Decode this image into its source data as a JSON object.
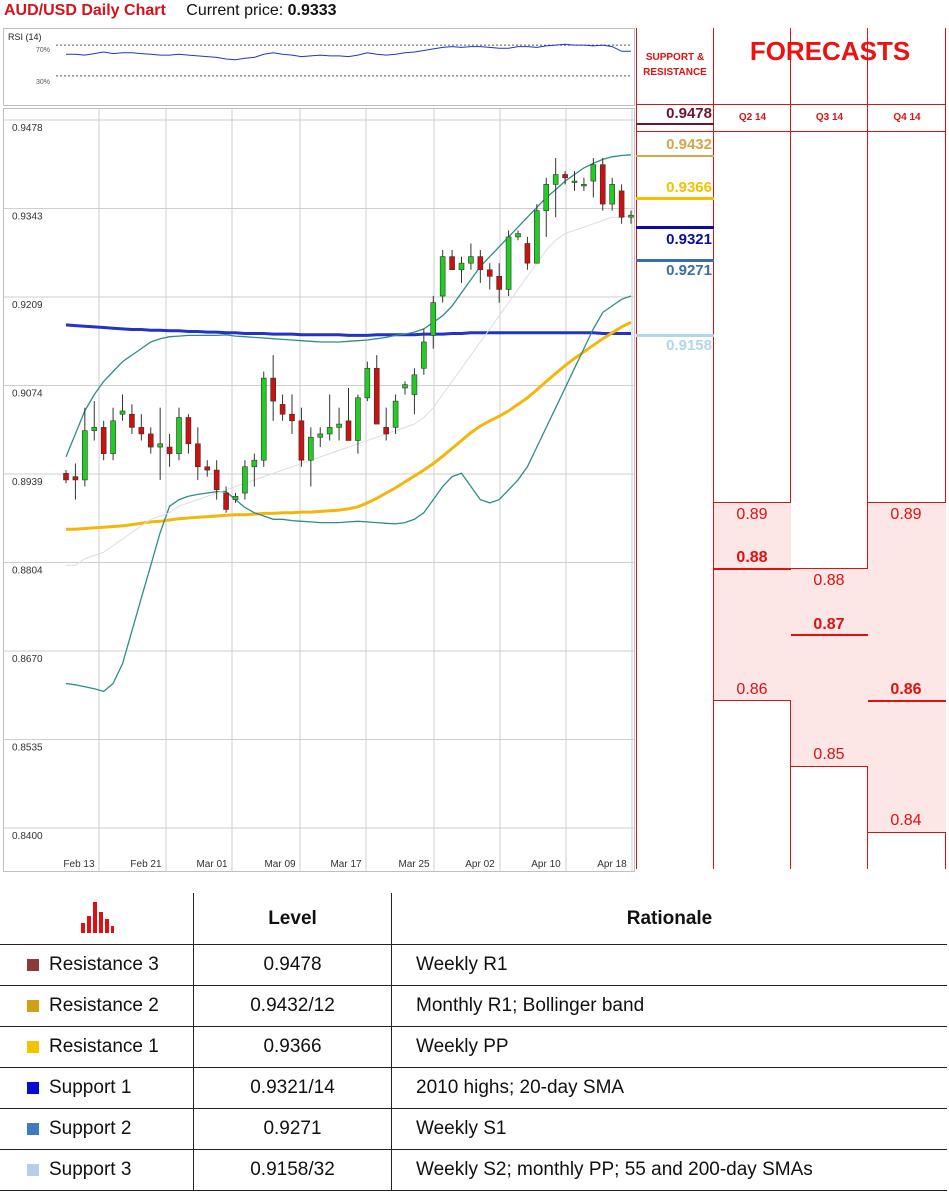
{
  "header": {
    "title": "AUD/USD Daily Chart",
    "current_price_label": "Current price:",
    "current_price": "0.9333"
  },
  "rsi": {
    "label": "RSI (14)",
    "ticks": [
      "70%",
      "30%"
    ]
  },
  "chart_data": {
    "type": "candlestick",
    "title": "AUD/USD Daily Chart",
    "ylim": [
      0.84,
      0.9478
    ],
    "y_ticks": [
      "0.9478",
      "0.9343",
      "0.9209",
      "0.9074",
      "0.8939",
      "0.8804",
      "0.8670",
      "0.8535",
      "0.8400"
    ],
    "x_ticks": [
      "Feb 13",
      "Feb 21",
      "Mar 01",
      "Mar 09",
      "Mar 17",
      "Mar 25",
      "Apr 02",
      "Apr 10",
      "Apr 18"
    ],
    "candles": [
      [
        0.894,
        0.8945,
        0.8925,
        0.893
      ],
      [
        0.8935,
        0.8955,
        0.89,
        0.893
      ],
      [
        0.893,
        0.904,
        0.892,
        0.9005
      ],
      [
        0.9005,
        0.905,
        0.899,
        0.901
      ],
      [
        0.901,
        0.902,
        0.896,
        0.897
      ],
      [
        0.897,
        0.904,
        0.896,
        0.902
      ],
      [
        0.903,
        0.906,
        0.902,
        0.9035
      ],
      [
        0.903,
        0.9045,
        0.9,
        0.901
      ],
      [
        0.901,
        0.903,
        0.899,
        0.9
      ],
      [
        0.9,
        0.901,
        0.897,
        0.898
      ],
      [
        0.898,
        0.904,
        0.893,
        0.8985
      ],
      [
        0.898,
        0.9,
        0.895,
        0.897
      ],
      [
        0.897,
        0.904,
        0.896,
        0.9025
      ],
      [
        0.9025,
        0.903,
        0.897,
        0.8985
      ],
      [
        0.8985,
        0.901,
        0.893,
        0.895
      ],
      [
        0.895,
        0.896,
        0.8935,
        0.8945
      ],
      [
        0.8945,
        0.896,
        0.89,
        0.8915
      ],
      [
        0.891,
        0.892,
        0.888,
        0.8885
      ],
      [
        0.89,
        0.891,
        0.8895,
        0.8905
      ],
      [
        0.891,
        0.896,
        0.89,
        0.895
      ],
      [
        0.895,
        0.897,
        0.892,
        0.896
      ],
      [
        0.896,
        0.9095,
        0.895,
        0.9085
      ],
      [
        0.9085,
        0.912,
        0.902,
        0.905
      ],
      [
        0.9045,
        0.906,
        0.902,
        0.903
      ],
      [
        0.903,
        0.906,
        0.9,
        0.902
      ],
      [
        0.902,
        0.904,
        0.895,
        0.896
      ],
      [
        0.896,
        0.901,
        0.892,
        0.8995
      ],
      [
        0.8995,
        0.901,
        0.898,
        0.9
      ],
      [
        0.9,
        0.906,
        0.899,
        0.901
      ],
      [
        0.901,
        0.904,
        0.899,
        0.9015
      ],
      [
        0.902,
        0.907,
        0.899,
        0.899
      ],
      [
        0.899,
        0.906,
        0.897,
        0.9055
      ],
      [
        0.9055,
        0.911,
        0.905,
        0.91
      ],
      [
        0.91,
        0.912,
        0.902,
        0.9015
      ],
      [
        0.901,
        0.904,
        0.899,
        0.9
      ],
      [
        0.901,
        0.906,
        0.9,
        0.905
      ],
      [
        0.907,
        0.908,
        0.906,
        0.9075
      ],
      [
        0.906,
        0.91,
        0.903,
        0.909
      ],
      [
        0.91,
        0.916,
        0.909,
        0.914
      ],
      [
        0.915,
        0.921,
        0.913,
        0.92
      ],
      [
        0.921,
        0.928,
        0.92,
        0.927
      ],
      [
        0.927,
        0.928,
        0.925,
        0.925
      ],
      [
        0.925,
        0.927,
        0.923,
        0.926
      ],
      [
        0.926,
        0.929,
        0.925,
        0.927
      ],
      [
        0.927,
        0.928,
        0.923,
        0.925
      ],
      [
        0.925,
        0.926,
        0.922,
        0.924
      ],
      [
        0.924,
        0.926,
        0.92,
        0.922
      ],
      [
        0.922,
        0.931,
        0.921,
        0.93
      ],
      [
        0.93,
        0.931,
        0.9295,
        0.9305
      ],
      [
        0.929,
        0.93,
        0.925,
        0.926
      ],
      [
        0.926,
        0.935,
        0.926,
        0.934
      ],
      [
        0.934,
        0.939,
        0.93,
        0.938
      ],
      [
        0.938,
        0.942,
        0.933,
        0.9395
      ],
      [
        0.9395,
        0.94,
        0.938,
        0.939
      ],
      [
        0.9385,
        0.94,
        0.937,
        0.9385
      ],
      [
        0.938,
        0.939,
        0.937,
        0.938
      ],
      [
        0.9385,
        0.942,
        0.936,
        0.941
      ],
      [
        0.941,
        0.942,
        0.934,
        0.935
      ],
      [
        0.935,
        0.939,
        0.934,
        0.938
      ],
      [
        0.937,
        0.938,
        0.932,
        0.933
      ],
      [
        0.933,
        0.934,
        0.932,
        0.9333
      ]
    ],
    "series": [
      {
        "color": "#2233cc",
        "values": [
          0.9166,
          0.9165,
          0.9164,
          0.9163,
          0.9162,
          0.9161,
          0.916,
          0.9159,
          0.9159,
          0.9158,
          0.9158,
          0.9157,
          0.9157,
          0.9156,
          0.9156,
          0.9155,
          0.9155,
          0.9154,
          0.9154,
          0.9153,
          0.9153,
          0.9153,
          0.9152,
          0.9152,
          0.9152,
          0.9151,
          0.9151,
          0.9151,
          0.9151,
          0.9151,
          0.915,
          0.915,
          0.915,
          0.9151,
          0.9151,
          0.9151,
          0.9151,
          0.9151,
          0.9152,
          0.9152,
          0.9152,
          0.9153,
          0.9153,
          0.9154,
          0.9154,
          0.9154,
          0.9154,
          0.9154,
          0.9154,
          0.9154,
          0.9154,
          0.9154,
          0.9154,
          0.9154,
          0.9154,
          0.9154,
          0.9154,
          0.9153,
          0.9153,
          0.9153,
          0.9153
        ]
      },
      {
        "color": "#f2b70c",
        "values": [
          0.8855,
          0.8855,
          0.8856,
          0.8857,
          0.8858,
          0.8859,
          0.886,
          0.8862,
          0.8864,
          0.8866,
          0.8867,
          0.8869,
          0.8871,
          0.8872,
          0.8873,
          0.8874,
          0.8875,
          0.8876,
          0.8877,
          0.8877,
          0.8878,
          0.8879,
          0.8879,
          0.888,
          0.888,
          0.8881,
          0.8881,
          0.8882,
          0.8883,
          0.8884,
          0.8886,
          0.8889,
          0.8895,
          0.8902,
          0.891,
          0.8918,
          0.8927,
          0.8936,
          0.8945,
          0.8955,
          0.8966,
          0.8978,
          0.899,
          0.9002,
          0.9012,
          0.902,
          0.9027,
          0.9035,
          0.9045,
          0.9055,
          0.9067,
          0.908,
          0.9092,
          0.9104,
          0.9115,
          0.9125,
          0.9135,
          0.9145,
          0.9154,
          0.9163,
          0.917
        ]
      },
      {
        "color": "#2f8c86",
        "values": [
          0.8965,
          0.9,
          0.9035,
          0.906,
          0.908,
          0.9095,
          0.911,
          0.912,
          0.913,
          0.914,
          0.9145,
          0.9148,
          0.9149,
          0.915,
          0.915,
          0.915,
          0.915,
          0.9151,
          0.9149,
          0.9148,
          0.9147,
          0.9146,
          0.9145,
          0.9144,
          0.9143,
          0.9142,
          0.9141,
          0.914,
          0.914,
          0.914,
          0.9141,
          0.9142,
          0.9143,
          0.9145,
          0.9147,
          0.915,
          0.9152,
          0.9155,
          0.916,
          0.917,
          0.918,
          0.9195,
          0.9215,
          0.9235,
          0.9255,
          0.927,
          0.9285,
          0.93,
          0.9315,
          0.933,
          0.9345,
          0.936,
          0.9372,
          0.9385,
          0.9395,
          0.9405,
          0.9412,
          0.9418,
          0.9422,
          0.9424,
          0.9425
        ]
      },
      {
        "color": "#2f8c86",
        "values": [
          0.862,
          0.8618,
          0.8615,
          0.8612,
          0.8608,
          0.862,
          0.865,
          0.87,
          0.875,
          0.88,
          0.885,
          0.889,
          0.89,
          0.8905,
          0.8908,
          0.891,
          0.8912,
          0.8912,
          0.89,
          0.8888,
          0.888,
          0.8875,
          0.887,
          0.887,
          0.8868,
          0.8867,
          0.8866,
          0.8865,
          0.8865,
          0.8865,
          0.8866,
          0.8867,
          0.8866,
          0.8865,
          0.8864,
          0.8863,
          0.8865,
          0.887,
          0.888,
          0.89,
          0.892,
          0.8935,
          0.894,
          0.892,
          0.89,
          0.8895,
          0.89,
          0.8915,
          0.893,
          0.895,
          0.898,
          0.901,
          0.904,
          0.907,
          0.91,
          0.913,
          0.916,
          0.9185,
          0.9195,
          0.9205,
          0.921
        ]
      },
      {
        "color": "#dddddd",
        "values": [
          0.88,
          0.88,
          0.881,
          0.8815,
          0.882,
          0.883,
          0.884,
          0.885,
          0.886,
          0.887,
          0.8875,
          0.888,
          0.889,
          0.8895,
          0.89,
          0.8905,
          0.891,
          0.8915,
          0.892,
          0.8925,
          0.893,
          0.8935,
          0.894,
          0.8945,
          0.895,
          0.8955,
          0.896,
          0.8965,
          0.897,
          0.8975,
          0.898,
          0.8985,
          0.899,
          0.8995,
          0.9,
          0.9005,
          0.901,
          0.9015,
          0.9025,
          0.904,
          0.906,
          0.908,
          0.91,
          0.912,
          0.914,
          0.916,
          0.918,
          0.92,
          0.922,
          0.924,
          0.926,
          0.928,
          0.9295,
          0.9305,
          0.931,
          0.9315,
          0.932,
          0.9325,
          0.933,
          0.933,
          0.9332
        ]
      }
    ],
    "rsi_values": [
      58,
      58,
      57,
      59,
      61,
      59,
      60,
      60,
      59,
      58,
      57,
      57,
      58,
      57,
      56,
      55,
      54,
      52,
      51,
      53,
      54,
      58,
      60,
      58,
      57,
      55,
      56,
      57,
      56,
      56,
      55,
      57,
      60,
      58,
      57,
      58,
      60,
      61,
      63,
      65,
      67,
      68,
      67,
      68,
      68,
      67,
      66,
      66,
      68,
      68,
      67,
      69,
      70,
      71,
      70,
      70,
      69,
      70,
      68,
      62,
      62
    ],
    "grid": true
  },
  "forecast": {
    "sr_title_1": "SUPPORT &",
    "sr_title_2": "RESISTANCE",
    "title": "FORECASTS",
    "quarters": [
      "Q2 14",
      "Q3 14",
      "Q4 14"
    ],
    "levels": [
      {
        "value": "0.9478",
        "price": 0.9478,
        "color": "#6b1630"
      },
      {
        "value": "0.9432",
        "price": 0.9432,
        "color": "#d4a64a"
      },
      {
        "value": "0.9366",
        "price": 0.9366,
        "color": "#f2c200"
      },
      {
        "value": "0.9321",
        "price": 0.9321,
        "color": "#0a0aa8"
      },
      {
        "value": "0.9271",
        "price": 0.9271,
        "color": "#3a6ea5"
      },
      {
        "value": "0.9158",
        "price": 0.9158,
        "color": "#b4d6e6"
      }
    ],
    "q2": {
      "high": "0.89",
      "mid": "0.88",
      "low": "0.86"
    },
    "q3": {
      "high": "0.88",
      "mid": "0.87",
      "low": "0.85"
    },
    "q4": {
      "high": "0.89",
      "mid": "0.86",
      "low": "0.84"
    }
  },
  "table": {
    "header_level": "Level",
    "header_rationale": "Rationale",
    "rows": [
      {
        "name": "Resistance 3",
        "level": "0.9478",
        "rationale": "Weekly R1",
        "color": "#8b3a3a"
      },
      {
        "name": "Resistance 2",
        "level": "0.9432/12",
        "rationale": "Monthly R1; Bollinger band",
        "color": "#d1a017"
      },
      {
        "name": "Resistance 1",
        "level": "0.9366",
        "rationale": "Weekly PP",
        "color": "#f5c400"
      },
      {
        "name": "Support 1",
        "level": "0.9321/14",
        "rationale": "2010 highs; 20-day SMA",
        "color": "#0a0ad4"
      },
      {
        "name": "Support 2",
        "level": "0.9271",
        "rationale": "Weekly S1",
        "color": "#3e7bc1"
      },
      {
        "name": "Support 3",
        "level": "0.9158/32",
        "rationale": "Weekly S2; monthly PP; 55 and 200-day SMAs",
        "color": "#b6cfe6"
      }
    ]
  }
}
